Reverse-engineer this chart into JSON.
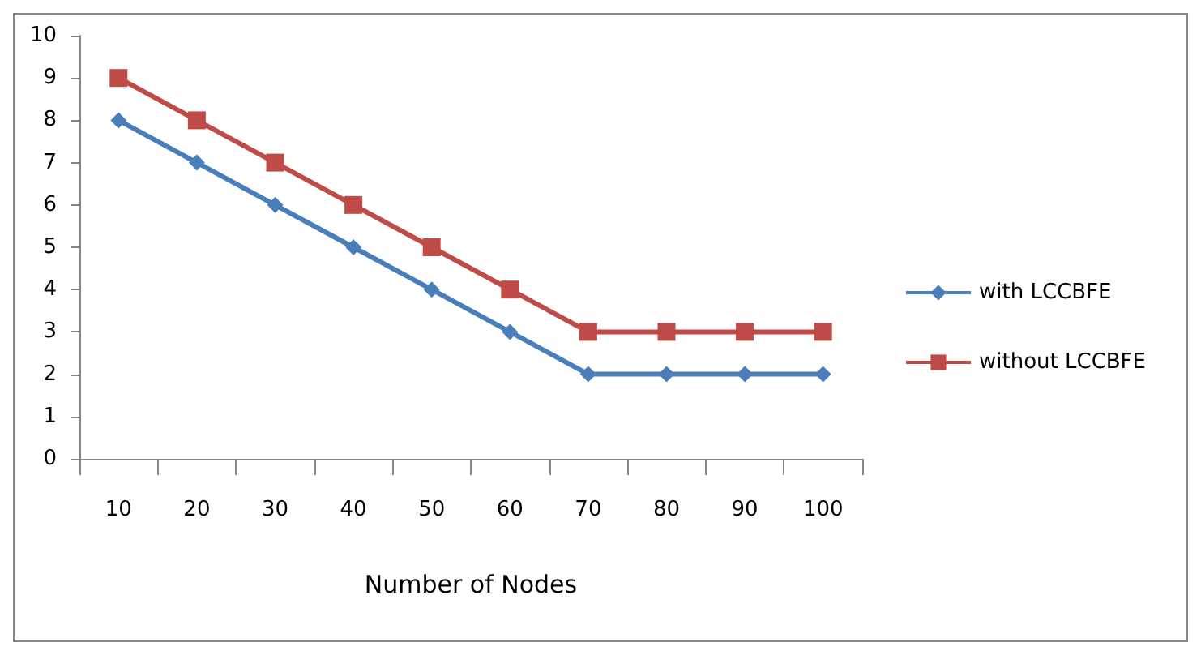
{
  "chart_data": {
    "type": "line",
    "xlabel": "Number of Nodes",
    "categories": [
      "10",
      "20",
      "30",
      "40",
      "50",
      "60",
      "70",
      "80",
      "90",
      "100"
    ],
    "series": [
      {
        "name": "with LCCBFE",
        "color": "#4a7ebb",
        "marker": "diamond",
        "values": [
          8,
          7,
          6,
          5,
          4,
          3,
          2,
          2,
          2,
          2
        ]
      },
      {
        "name": "without LCCBFE",
        "color": "#be4b48",
        "marker": "square",
        "values": [
          9,
          8,
          7,
          6,
          5,
          4,
          3,
          3,
          3,
          3
        ]
      }
    ],
    "ylim": [
      0,
      10
    ],
    "yticks": [
      0,
      1,
      2,
      3,
      4,
      5,
      6,
      7,
      8,
      9,
      10
    ],
    "grid": false,
    "legend": "right",
    "line_style": "solid"
  }
}
